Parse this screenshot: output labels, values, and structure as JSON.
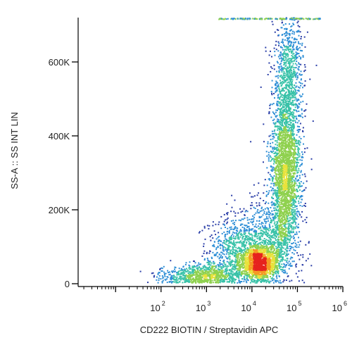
{
  "chart_data": {
    "type": "scatter",
    "style": "density-dot-plot",
    "xlabel": "CD222 BIOTIN / Streptavidin APC",
    "ylabel": "SS-A :: SS INT LIN",
    "x_scale": "log",
    "xlim": [
      1.5,
      1000000
    ],
    "ylim": [
      0,
      720000
    ],
    "grid": false,
    "legend": "none",
    "x_ticks": [
      {
        "base": "10",
        "exp": "2",
        "value": 100
      },
      {
        "base": "10",
        "exp": "3",
        "value": 1000
      },
      {
        "base": "10",
        "exp": "4",
        "value": 10000
      },
      {
        "base": "10",
        "exp": "5",
        "value": 100000
      },
      {
        "base": "10",
        "exp": "6",
        "value": 1000000
      }
    ],
    "y_ticks": [
      {
        "label": "0",
        "value": 0
      },
      {
        "label": "200K",
        "value": 200000
      },
      {
        "label": "400K",
        "value": 400000
      },
      {
        "label": "600K",
        "value": 600000
      }
    ],
    "color_scale": [
      "#2b3fa8",
      "#2f8fd6",
      "#39c2a8",
      "#8fd14f",
      "#e8e23a",
      "#f59a23",
      "#e6231e"
    ],
    "populations": [
      {
        "x": 15000,
        "y": 55000,
        "x_spread_decades": 0.2,
        "y_spread": 22000,
        "share": 0.2
      },
      {
        "x": 55000,
        "y": 300000,
        "x_spread_decades": 0.16,
        "y_spread": 110000,
        "share": 0.34
      },
      {
        "x": 65000,
        "y": 560000,
        "x_spread_decades": 0.17,
        "y_spread": 90000,
        "share": 0.12
      },
      {
        "x": 1500,
        "y": 25000,
        "x_spread_decades": 0.3,
        "y_spread": 15000,
        "share": 0.07
      },
      {
        "x": 5000,
        "y": 90000,
        "x_spread_decades": 0.35,
        "y_spread": 45000,
        "share": 0.12
      },
      {
        "x": 25000,
        "y": 130000,
        "x_spread_decades": 0.3,
        "y_spread": 60000,
        "share": 0.1
      },
      {
        "x": 400,
        "y": 20000,
        "x_spread_decades": 0.35,
        "y_spread": 15000,
        "share": 0.05
      }
    ]
  }
}
